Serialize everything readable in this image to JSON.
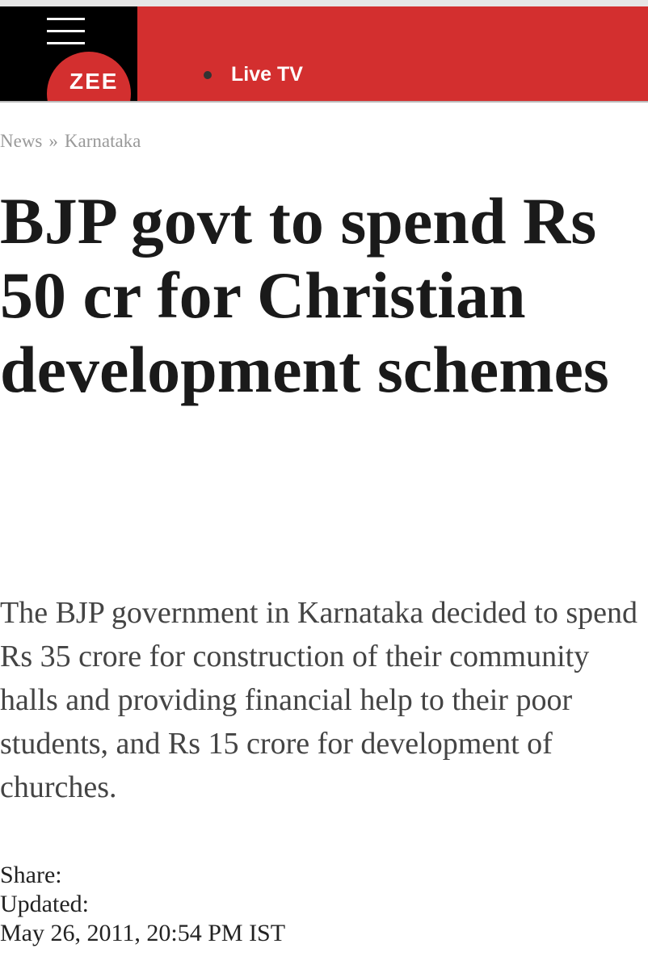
{
  "header": {
    "logo": "ZEE",
    "live_tv": "Live TV"
  },
  "breadcrumb": {
    "items": [
      "News",
      "Karnataka"
    ],
    "separator": "»"
  },
  "article": {
    "headline": "BJP govt to spend Rs 50 cr for Christian development schemes",
    "summary": "The BJP government in Karnataka decided to spend Rs 35 crore for construction of their community halls and providing financial help to their poor students, and Rs 15 crore for development of churches.",
    "share_label": "Share:",
    "updated_label": "Updated:",
    "updated_date": "May 26, 2011, 20:54 PM IST"
  }
}
